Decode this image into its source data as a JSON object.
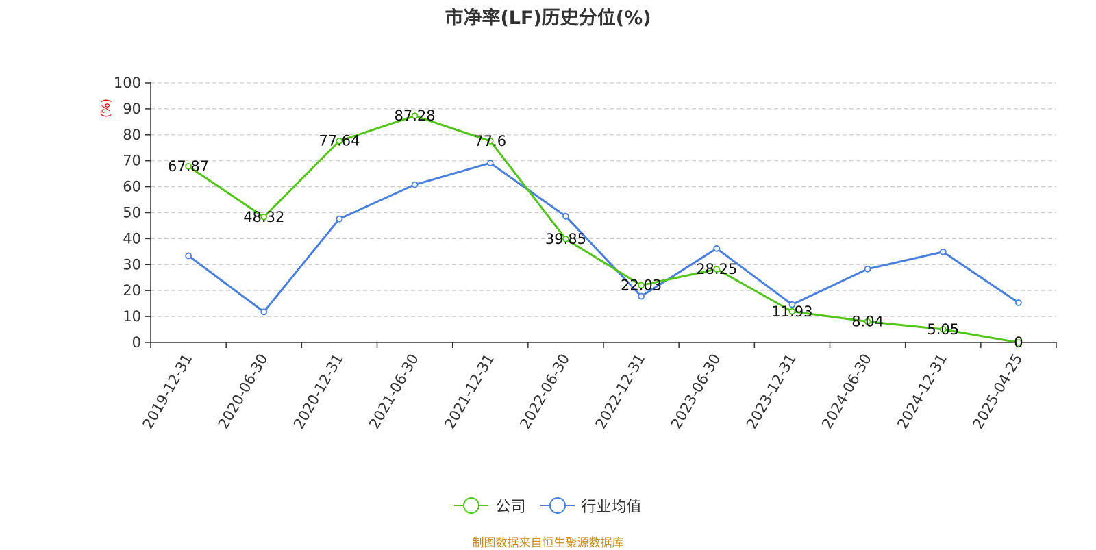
{
  "chart_data": {
    "type": "line",
    "title": "市净率(LF)历史分位(%)",
    "ylabel": "(%)",
    "xlabel": "",
    "categories": [
      "2019-12-31",
      "2020-06-30",
      "2020-12-31",
      "2021-06-30",
      "2021-12-31",
      "2022-06-30",
      "2022-12-31",
      "2023-06-30",
      "2023-12-31",
      "2024-06-30",
      "2024-12-31",
      "2025-04-25"
    ],
    "ylim": [
      0,
      100
    ],
    "yticks": [
      "0",
      "10",
      "20",
      "30",
      "40",
      "50",
      "60",
      "70",
      "80",
      "90",
      "100"
    ],
    "grid": true,
    "legend_position": "bottom-center",
    "series": [
      {
        "name": "公司",
        "color": "#52c41a",
        "values": [
          67.87,
          48.32,
          77.64,
          87.28,
          77.6,
          39.85,
          22.03,
          28.25,
          11.93,
          8.04,
          5.05,
          0
        ],
        "labels": [
          "67.87",
          "48.32",
          "77.64",
          "87.28",
          "77.6",
          "39.85",
          "22.03",
          "28.25",
          "11.93",
          "8.04",
          "5.05",
          "0"
        ]
      },
      {
        "name": "行业均值",
        "color": "#4a80dc",
        "values": [
          33.4,
          11.8,
          47.6,
          60.8,
          69.1,
          48.6,
          17.8,
          36.2,
          14.6,
          28.3,
          34.9,
          15.3
        ]
      }
    ]
  },
  "source_note": "制图数据来自恒生聚源数据库"
}
